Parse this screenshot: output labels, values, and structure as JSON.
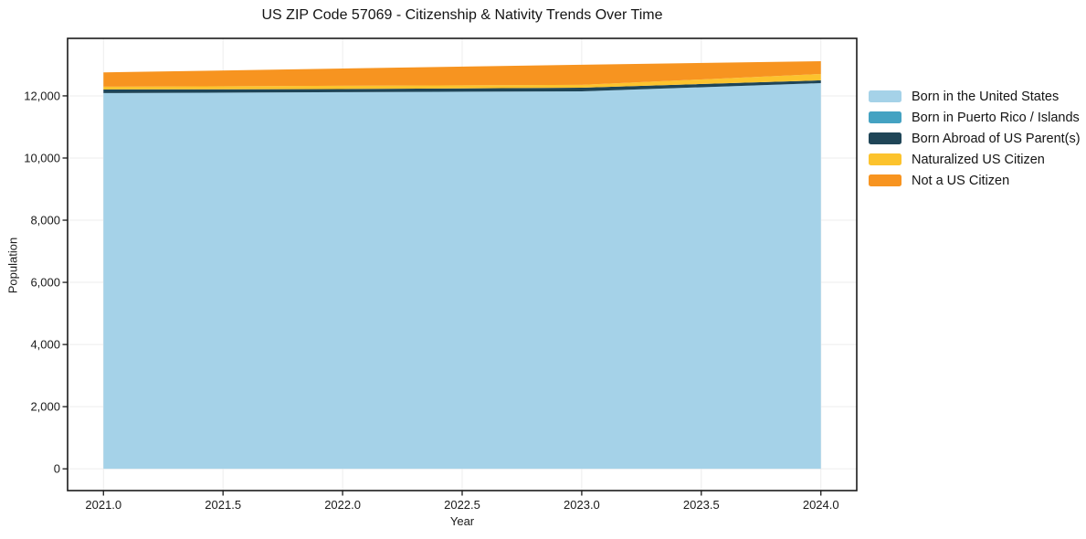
{
  "chart_data": {
    "type": "area",
    "stacked": true,
    "title": "US ZIP Code 57069 - Citizenship & Nativity Trends Over Time",
    "xlabel": "Year",
    "ylabel": "Population",
    "x": [
      2021,
      2022,
      2023,
      2024
    ],
    "series": [
      {
        "name": "Born in the United States",
        "color": "#a5d2e8",
        "values": [
          12090,
          12120,
          12145,
          12410
        ]
      },
      {
        "name": "Born in Puerto Rico / Islands",
        "color": "#44a2c2",
        "values": [
          0,
          0,
          0,
          0
        ]
      },
      {
        "name": "Born Abroad of US Parent(s)",
        "color": "#1f4557",
        "values": [
          115,
          100,
          118,
          90
        ]
      },
      {
        "name": "Naturalized US Citizen",
        "color": "#fcc32d",
        "values": [
          90,
          105,
          90,
          205
        ]
      },
      {
        "name": "Not a US Citizen",
        "color": "#f79420",
        "values": [
          460,
          555,
          647,
          410
        ]
      }
    ],
    "xticks": [
      {
        "value": 2021.0,
        "label": "2021.0"
      },
      {
        "value": 2021.5,
        "label": "2021.5"
      },
      {
        "value": 2022.0,
        "label": "2022.0"
      },
      {
        "value": 2022.5,
        "label": "2022.5"
      },
      {
        "value": 2023.0,
        "label": "2023.0"
      },
      {
        "value": 2023.5,
        "label": "2023.5"
      },
      {
        "value": 2024.0,
        "label": "2024.0"
      }
    ],
    "yticks": [
      {
        "value": 0,
        "label": "0"
      },
      {
        "value": 2000,
        "label": "2,000"
      },
      {
        "value": 4000,
        "label": "4,000"
      },
      {
        "value": 6000,
        "label": "6,000"
      },
      {
        "value": 8000,
        "label": "8,000"
      },
      {
        "value": 10000,
        "label": "10,000"
      },
      {
        "value": 12000,
        "label": "12,000"
      }
    ],
    "xlim": [
      2020.85,
      2024.15
    ],
    "ylim": [
      -700,
      13850
    ],
    "grid": true,
    "legend_position": "right-outside",
    "colors": {
      "grid": "#ededed",
      "spine": "#1a1a1a",
      "background": "#ffffff"
    }
  }
}
